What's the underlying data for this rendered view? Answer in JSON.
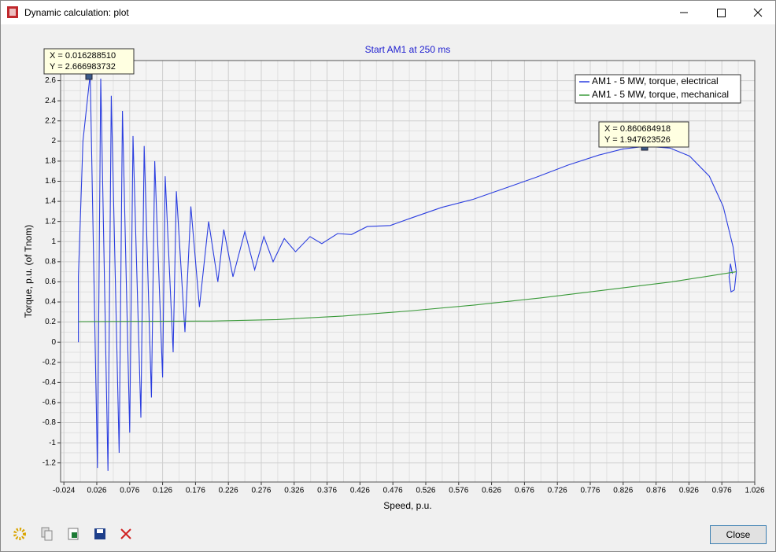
{
  "window": {
    "title": "Dynamic calculation: plot"
  },
  "chart_data": {
    "type": "line",
    "title": "Start AM1 at 250 ms",
    "x_label": "Speed, p.u.",
    "y_label": "Torque, p.u. (of Tnom)",
    "xlim": [
      -0.029,
      1.026
    ],
    "ylim": [
      -1.39,
      2.8
    ],
    "xticks": [
      -0.024,
      0.026,
      0.076,
      0.126,
      0.176,
      0.226,
      0.276,
      0.326,
      0.376,
      0.426,
      0.476,
      0.526,
      0.576,
      0.626,
      0.676,
      0.726,
      0.776,
      0.826,
      0.876,
      0.926,
      0.976,
      1.026
    ],
    "yticks": [
      -1.2,
      -1,
      -0.8,
      -0.6,
      -0.4,
      -0.2,
      0,
      0.2,
      0.4,
      0.6,
      0.8,
      1,
      1.2,
      1.4,
      1.6,
      1.8,
      2,
      2.2,
      2.4,
      2.6
    ],
    "grid": true,
    "legend": "top-right",
    "series": [
      {
        "name": "AM1 - 5 MW, torque, electrical",
        "color": "#2b3ee0",
        "x": [
          -0.002,
          -0.002,
          0.005,
          0.016,
          0.027,
          0.032,
          0.043,
          0.048,
          0.06,
          0.065,
          0.076,
          0.081,
          0.093,
          0.098,
          0.109,
          0.114,
          0.126,
          0.13,
          0.142,
          0.147,
          0.16,
          0.169,
          0.182,
          0.196,
          0.21,
          0.219,
          0.233,
          0.251,
          0.266,
          0.28,
          0.294,
          0.311,
          0.328,
          0.35,
          0.368,
          0.392,
          0.413,
          0.437,
          0.472,
          0.502,
          0.55,
          0.598,
          0.646,
          0.694,
          0.742,
          0.789,
          0.825,
          0.861,
          0.897,
          0.927,
          0.957,
          0.978,
          0.993,
          0.998,
          0.995,
          0.99,
          0.987,
          0.989,
          0.992
        ],
        "values": [
          0,
          0.65,
          2.0,
          2.667,
          -1.25,
          2.62,
          -1.28,
          2.45,
          -1.1,
          2.3,
          -0.9,
          2.05,
          -0.75,
          1.95,
          -0.55,
          1.8,
          -0.35,
          1.65,
          -0.1,
          1.5,
          0.1,
          1.35,
          0.35,
          1.2,
          0.6,
          1.12,
          0.65,
          1.1,
          0.72,
          1.05,
          0.8,
          1.03,
          0.9,
          1.05,
          0.98,
          1.08,
          1.07,
          1.15,
          1.16,
          1.23,
          1.34,
          1.42,
          1.53,
          1.64,
          1.76,
          1.86,
          1.92,
          1.948,
          1.93,
          1.85,
          1.65,
          1.35,
          0.95,
          0.7,
          0.52,
          0.5,
          0.65,
          0.78,
          0.68
        ]
      },
      {
        "name": "AM1 - 5 MW, torque, mechanical",
        "color": "#3a9a3a",
        "x": [
          -0.002,
          0.2,
          0.3,
          0.4,
          0.5,
          0.6,
          0.7,
          0.8,
          0.9,
          0.998
        ],
        "values": [
          0.205,
          0.21,
          0.225,
          0.26,
          0.31,
          0.37,
          0.44,
          0.52,
          0.6,
          0.7
        ]
      }
    ],
    "annotations": [
      [
        "X = 0.016288510",
        "Y = 2.666983732"
      ],
      [
        "X = 0.860684918",
        "Y = 1.947623526"
      ]
    ]
  },
  "buttons": {
    "close": "Close"
  }
}
